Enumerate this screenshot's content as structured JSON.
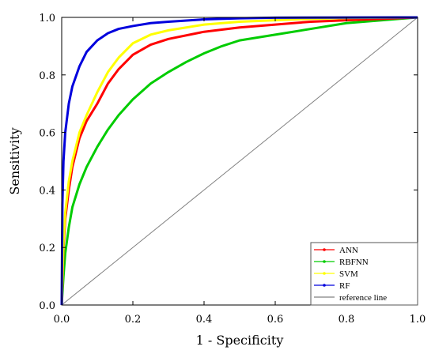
{
  "chart_data": {
    "type": "line",
    "title": "",
    "xlabel": "1 - Specificity",
    "ylabel": "Sensitivity",
    "xlim": [
      0.0,
      1.0
    ],
    "ylim": [
      0.0,
      1.0
    ],
    "x_ticks": [
      "0.0",
      "0.2",
      "0.4",
      "0.6",
      "0.8",
      "1.0"
    ],
    "y_ticks": [
      "0.0",
      "0.2",
      "0.4",
      "0.6",
      "0.8",
      "1.0"
    ],
    "grid": false,
    "legend_position": "bottom-right",
    "series": [
      {
        "name": "ANN",
        "color": "#ff0000",
        "points": [
          [
            0,
            0
          ],
          [
            0.005,
            0.2
          ],
          [
            0.01,
            0.3
          ],
          [
            0.02,
            0.4
          ],
          [
            0.03,
            0.48
          ],
          [
            0.05,
            0.58
          ],
          [
            0.07,
            0.64
          ],
          [
            0.1,
            0.7
          ],
          [
            0.13,
            0.77
          ],
          [
            0.16,
            0.82
          ],
          [
            0.2,
            0.87
          ],
          [
            0.25,
            0.905
          ],
          [
            0.3,
            0.925
          ],
          [
            0.4,
            0.95
          ],
          [
            0.5,
            0.965
          ],
          [
            0.6,
            0.975
          ],
          [
            0.7,
            0.985
          ],
          [
            0.8,
            0.99
          ],
          [
            0.9,
            0.995
          ],
          [
            1,
            1
          ]
        ]
      },
      {
        "name": "RBFNN",
        "color": "#00cc00",
        "points": [
          [
            0,
            0
          ],
          [
            0.005,
            0.1
          ],
          [
            0.01,
            0.18
          ],
          [
            0.02,
            0.27
          ],
          [
            0.03,
            0.34
          ],
          [
            0.05,
            0.42
          ],
          [
            0.07,
            0.48
          ],
          [
            0.1,
            0.55
          ],
          [
            0.13,
            0.61
          ],
          [
            0.16,
            0.66
          ],
          [
            0.2,
            0.715
          ],
          [
            0.25,
            0.77
          ],
          [
            0.3,
            0.81
          ],
          [
            0.35,
            0.845
          ],
          [
            0.4,
            0.875
          ],
          [
            0.45,
            0.9
          ],
          [
            0.5,
            0.92
          ],
          [
            0.6,
            0.94
          ],
          [
            0.7,
            0.96
          ],
          [
            0.8,
            0.98
          ],
          [
            0.9,
            0.99
          ],
          [
            1,
            1
          ]
        ]
      },
      {
        "name": "SVM",
        "color": "#ffff00",
        "points": [
          [
            0,
            0
          ],
          [
            0.005,
            0.22
          ],
          [
            0.01,
            0.32
          ],
          [
            0.02,
            0.43
          ],
          [
            0.03,
            0.5
          ],
          [
            0.05,
            0.6
          ],
          [
            0.07,
            0.66
          ],
          [
            0.1,
            0.74
          ],
          [
            0.13,
            0.81
          ],
          [
            0.16,
            0.86
          ],
          [
            0.2,
            0.91
          ],
          [
            0.25,
            0.94
          ],
          [
            0.3,
            0.955
          ],
          [
            0.4,
            0.975
          ],
          [
            0.5,
            0.985
          ],
          [
            0.6,
            0.99
          ],
          [
            0.7,
            0.995
          ],
          [
            0.8,
            0.998
          ],
          [
            1,
            1
          ]
        ]
      },
      {
        "name": "RF",
        "color": "#0000dd",
        "points": [
          [
            0,
            0
          ],
          [
            0.002,
            0.35
          ],
          [
            0.005,
            0.5
          ],
          [
            0.01,
            0.6
          ],
          [
            0.02,
            0.7
          ],
          [
            0.03,
            0.76
          ],
          [
            0.05,
            0.83
          ],
          [
            0.07,
            0.88
          ],
          [
            0.1,
            0.92
          ],
          [
            0.13,
            0.945
          ],
          [
            0.16,
            0.96
          ],
          [
            0.2,
            0.97
          ],
          [
            0.25,
            0.98
          ],
          [
            0.3,
            0.985
          ],
          [
            0.4,
            0.993
          ],
          [
            0.5,
            0.997
          ],
          [
            0.6,
            0.999
          ],
          [
            1,
            1
          ]
        ]
      },
      {
        "name": "reference line",
        "color": "#808080",
        "points": [
          [
            0,
            0
          ],
          [
            1,
            1
          ]
        ]
      }
    ]
  }
}
